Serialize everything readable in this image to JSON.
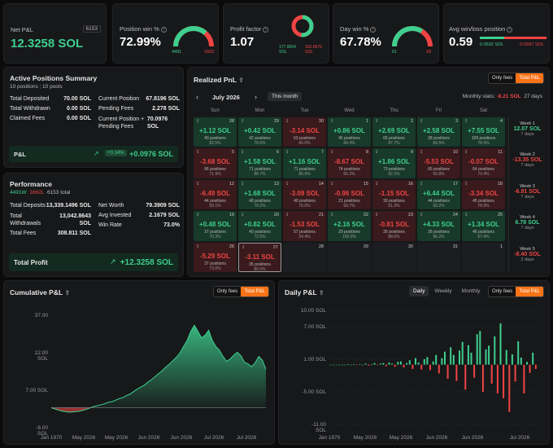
{
  "net_pnl": {
    "label": "Net P&L",
    "value": "12.3258 SOL",
    "badge": "6153"
  },
  "position_win": {
    "label": "Position win %",
    "value": "72.99%",
    "wins": "4491",
    "losses": "1662",
    "win_frac": 0.7299
  },
  "profit_factor": {
    "label": "Profit factor",
    "value": "1.07",
    "left": "177.9934",
    "left_unit": "SOL",
    "right": "165.6676",
    "right_unit": "SOL",
    "win_frac": 0.518
  },
  "day_win": {
    "label": "Day win %",
    "value": "67.78%",
    "wins": "61",
    "losses": "29",
    "win_frac": 0.6778
  },
  "avg_winloss": {
    "label": "Avg win/loss position",
    "value": "0.59",
    "win": "0.0592 SOL",
    "loss": "-0.0997 SOL",
    "win_frac": 0.37
  },
  "active_summary": {
    "title": "Active Positions Summary",
    "positions": "10 positions",
    "pools": "10 pools",
    "left_rows": [
      {
        "k": "Total Deposited",
        "v": "70.00 SOL"
      },
      {
        "k": "Total Withdrawn",
        "v": "0.00 SOL"
      },
      {
        "k": "Claimed Fees",
        "v": "0.00 SOL"
      }
    ],
    "right_rows": [
      {
        "k": "Current Position",
        "v": "67.8196 SOL"
      },
      {
        "k": "Pending Fees",
        "v": "2.278 SOL"
      },
      {
        "k": "Current Position + Pending Fees",
        "v": "70.0976 SOL"
      }
    ],
    "pl_label": "P&L",
    "pl_pct": "+0.14%",
    "pl_value": "+0.0976 SOL"
  },
  "performance": {
    "title": "Performance",
    "wins": "4491W",
    "losses": "1662L",
    "total": "6153 total",
    "left_rows": [
      {
        "k": "Total Deposits",
        "v": "13,339.1496 SOL"
      },
      {
        "k": "Total Withdrawals",
        "v": "13,042.8643 SOL"
      },
      {
        "k": "Total Fees",
        "v": "308.811 SOL"
      }
    ],
    "right_rows": [
      {
        "k": "Net Worth",
        "v": "79.3909 SOL"
      },
      {
        "k": "Avg Invested",
        "v": "2.1679 SOL"
      },
      {
        "k": "Win Rate",
        "v": "73.0%"
      }
    ],
    "profit_label": "Total Profit",
    "profit_value": "+12.3258 SOL"
  },
  "realized": {
    "title": "Realized PnL",
    "only_fees": "Only fees",
    "total_pl": "Total P&L",
    "month": "July 2026",
    "this_month": "This month",
    "monthly_stats_label": "Monthly stats:",
    "monthly_value": "-8.21 SOL",
    "monthly_days": "27 days",
    "weekdays": [
      "Sun",
      "Mon",
      "Tue",
      "Wed",
      "Thu",
      "Fri",
      "Sat"
    ],
    "weeks": [
      [
        {
          "d": "28",
          "v": "+1.12 SOL",
          "p": "40 positions",
          "r": "82.5%"
        },
        {
          "d": "29",
          "v": "+0.42 SOL",
          "p": "42 positions",
          "r": "78.6%"
        },
        {
          "d": "30",
          "v": "-3.14 SOL",
          "p": "53 positions",
          "r": "66.0%"
        },
        {
          "d": "1",
          "v": "+0.86 SOL",
          "p": "45 positions",
          "r": "84.4%"
        },
        {
          "d": "2",
          "v": "+2.69 SOL",
          "p": "65 positions",
          "r": "87.7%"
        },
        {
          "d": "3",
          "v": "+2.58 SOL",
          "p": "38 positions",
          "r": "89.5%"
        },
        {
          "d": "4",
          "v": "+7.55 SOL",
          "p": "109 positions",
          "r": "78.9%"
        }
      ],
      [
        {
          "d": "5",
          "v": "-3.68 SOL",
          "p": "96 positions",
          "r": "71.9%"
        },
        {
          "d": "6",
          "v": "+1.58 SOL",
          "p": "71 positions",
          "r": "88.7%"
        },
        {
          "d": "7",
          "v": "+1.16 SOL",
          "p": "71 positions",
          "r": "85.9%"
        },
        {
          "d": "8",
          "v": "-8.67 SOL",
          "p": "74 positions",
          "r": "66.2%"
        },
        {
          "d": "9",
          "v": "+1.86 SOL",
          "p": "73 positions",
          "r": "82.2%"
        },
        {
          "d": "10",
          "v": "-5.53 SOL",
          "p": "65 positions",
          "r": "50.8%"
        },
        {
          "d": "11",
          "v": "-0.07 SOL",
          "p": "64 positions",
          "r": "73.4%"
        }
      ],
      [
        {
          "d": "12",
          "v": "-6.49 SOL",
          "p": "44 positions",
          "r": "59.1%"
        },
        {
          "d": "13",
          "v": "+1.68 SOL",
          "p": "48 positions",
          "r": "79.2%"
        },
        {
          "d": "14",
          "v": "-3.09 SOL",
          "p": "40 positions",
          "r": "75.0%"
        },
        {
          "d": "15",
          "v": "-0.96 SOL",
          "p": "21 positions",
          "r": "66.7%"
        },
        {
          "d": "16",
          "v": "-1.15 SOL",
          "p": "39 positions",
          "r": "51.3%"
        },
        {
          "d": "17",
          "v": "+6.44 SOL",
          "p": "44 positions",
          "r": "93.2%"
        },
        {
          "d": "18",
          "v": "-3.34 SOL",
          "p": "45 positions",
          "r": "78.9%"
        }
      ],
      [
        {
          "d": "19",
          "v": "+0.48 SOL",
          "p": "37 positions",
          "r": "70.3%"
        },
        {
          "d": "20",
          "v": "+0.82 SOL",
          "p": "40 positions",
          "r": "72.5%"
        },
        {
          "d": "21",
          "v": "-1.53 SOL",
          "p": "57 positions",
          "r": "54.4%"
        },
        {
          "d": "22",
          "v": "+2.16 SOL",
          "p": "20 positions",
          "r": "100.0%"
        },
        {
          "d": "23",
          "v": "-0.81 SOL",
          "p": "35 positions",
          "r": "88.6%"
        },
        {
          "d": "24",
          "v": "+4.33 SOL",
          "p": "26 positions",
          "r": "96.2%"
        },
        {
          "d": "25",
          "v": "+1.34 SOL",
          "p": "46 positions",
          "r": "67.4%"
        }
      ],
      [
        {
          "d": "26",
          "v": "-5.29 SOL",
          "p": "37 positions",
          "r": "73.0%"
        },
        {
          "d": "27",
          "v": "-3.11 SOL",
          "p": "35 positions",
          "r": "80.0%"
        },
        {
          "d": "28",
          "v": "",
          "p": "",
          "r": ""
        },
        {
          "d": "29",
          "v": "",
          "p": "",
          "r": ""
        },
        {
          "d": "30",
          "v": "",
          "p": "",
          "r": ""
        },
        {
          "d": "31",
          "v": "",
          "p": "",
          "r": ""
        },
        {
          "d": "1",
          "v": "",
          "p": "",
          "r": ""
        }
      ]
    ],
    "week_totals": [
      {
        "t": "Week 1",
        "v": "12.07 SOL",
        "d": "7 days"
      },
      {
        "t": "Week 2",
        "v": "-13.35 SOL",
        "d": "7 days"
      },
      {
        "t": "Week 3",
        "v": "-6.91 SOL",
        "d": "7 days"
      },
      {
        "t": "Week 4",
        "v": "6.78 SOL",
        "d": "7 days"
      },
      {
        "t": "Week 5",
        "v": "-8.40 SOL",
        "d": "2 days"
      }
    ]
  },
  "cumulative": {
    "title": "Cumulative P&L",
    "only_fees": "Only fees",
    "total_pl": "Total P&L",
    "y_ticks": [
      "37.00",
      "22.00",
      "7.00 SOL",
      "-8.00"
    ],
    "y_units": [
      "",
      "SOL",
      "",
      "SOL"
    ],
    "x_ticks": [
      "Jan 1970",
      "May 2026",
      "May 2026",
      "Jun 2026",
      "Jun 2026",
      "Jul 2026",
      "Jul 2026"
    ]
  },
  "daily": {
    "title": "Daily P&L",
    "tabs": [
      "Daily",
      "Weekly",
      "Monthly"
    ],
    "only_fees": "Only fees",
    "total_pl": "Total P&L",
    "y_ticks": [
      "10.00 SOL",
      "7.00 SOL",
      "1.00 SOL",
      "-5.00 SOL",
      "-11.00"
    ],
    "y_last_unit": "SOL",
    "x_ticks": [
      "Jan 1970",
      "May 2026",
      "May 2026",
      "Jun 2026",
      "Jun 2026",
      "Jul 2026"
    ]
  },
  "chart_data": [
    {
      "type": "area",
      "title": "Cumulative P&L",
      "ylim": [
        -8,
        37
      ],
      "x": [
        0,
        1,
        2,
        3,
        4,
        5,
        6,
        7,
        8,
        9,
        10,
        11,
        12,
        13,
        14,
        15,
        16,
        17,
        18,
        19,
        20,
        21,
        22,
        23,
        24,
        25,
        26,
        27,
        28,
        29,
        30,
        31,
        32,
        33,
        34,
        35,
        36,
        37,
        38,
        39,
        40,
        41,
        42,
        43,
        44,
        45,
        46,
        47,
        48,
        49,
        50,
        51,
        52,
        53,
        54,
        55,
        56,
        57,
        58,
        59,
        60
      ],
      "values": [
        0,
        -0.5,
        -1,
        -1.4,
        -1.6,
        -1.8,
        -1.7,
        -1.6,
        -1.4,
        -1.0,
        -0.6,
        0,
        0.5,
        0.8,
        1.2,
        1.6,
        2.2,
        2.4,
        3.0,
        3.6,
        4.0,
        4.8,
        5.4,
        6.4,
        7.4,
        8.2,
        9.0,
        10.2,
        11.2,
        12.4,
        13.6,
        14.8,
        16.2,
        17.4,
        18.8,
        20.2,
        22.0,
        24.5,
        27.0,
        30.5,
        33.0,
        30.5,
        28.0,
        29.0,
        31.0,
        27.0,
        24.5,
        23.0,
        20.5,
        18.5,
        19.5,
        21.0,
        22.2,
        20.8,
        18.2,
        17.5,
        16.4,
        18.0,
        20.5,
        19.0,
        15.3
      ]
    },
    {
      "type": "bar",
      "title": "Daily P&L",
      "ylim": [
        -11,
        10
      ],
      "values": [
        0,
        0,
        0,
        0,
        0,
        0,
        0.1,
        0,
        0.1,
        -0.1,
        0.1,
        0,
        0.2,
        -0.2,
        0.1,
        0.3,
        -0.1,
        0.2,
        0.3,
        -0.3,
        0.4,
        0.2,
        -0.4,
        0.5,
        0.6,
        -0.5,
        0.3,
        0.8,
        -0.8,
        1.2,
        0.4,
        -0.9,
        1.0,
        1.4,
        -1.0,
        0.6,
        1.8,
        -1.6,
        1.2,
        2.4,
        -2.6,
        3.2,
        1.8,
        -3.0,
        2.6,
        4.2,
        -4.6,
        3.6,
        2.2,
        -2.4,
        5.6,
        6.2,
        -5.0,
        2.8,
        3.5,
        -3.5,
        5.2,
        -5.3,
        7.6,
        -6.2,
        2.7,
        -8.7,
        1.9,
        -3.1,
        4.3,
        1.3,
        -5.3,
        0.5,
        -1.5,
        2.2,
        -0.8
      ]
    }
  ]
}
